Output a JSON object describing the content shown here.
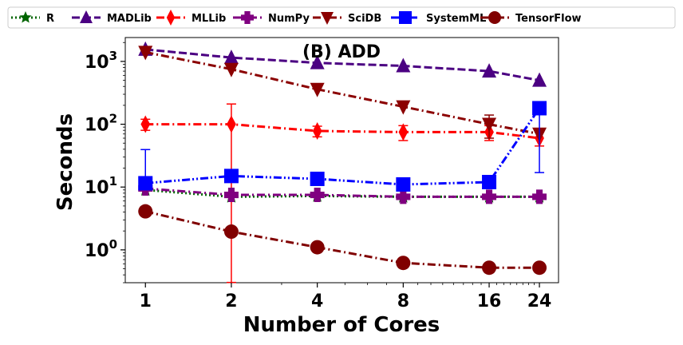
{
  "chart_data": {
    "type": "line",
    "title": "(B) ADD",
    "xlabel": "Number of Cores",
    "ylabel": "Seconds",
    "yscale": "log",
    "xscale": "log2",
    "x": [
      1,
      2,
      4,
      8,
      16,
      24
    ],
    "x_tick_labels": [
      "1",
      "2",
      "4",
      "8",
      "16",
      "24"
    ],
    "y_tick_labels": [
      {
        "base": "10",
        "exp": "0",
        "value": 1
      },
      {
        "base": "10",
        "exp": "1",
        "value": 10
      },
      {
        "base": "10",
        "exp": "2",
        "value": 100
      },
      {
        "base": "10",
        "exp": "3",
        "value": 1000
      }
    ],
    "ylim": [
      0.3,
      2400
    ],
    "legend_position": "top",
    "series": [
      {
        "name": "R",
        "color": "#006400",
        "marker": "star",
        "linestyle": "dotted",
        "values": [
          9.0,
          7.0,
          7.2,
          7.0,
          7.0,
          7.0
        ]
      },
      {
        "name": "MADLib",
        "color": "#4B0082",
        "marker": "triangle-up",
        "linestyle": "dashed",
        "values": [
          1550,
          1150,
          950,
          850,
          700,
          500
        ]
      },
      {
        "name": "MLLib",
        "color": "#FF0000",
        "marker": "diamond",
        "linestyle": "dashdot",
        "values": [
          100,
          100,
          78,
          75,
          75,
          60
        ],
        "errors": [
          20,
          110,
          15,
          20,
          20,
          15
        ]
      },
      {
        "name": "NumPy",
        "color": "#800080",
        "marker": "plus",
        "linestyle": "dashdot",
        "values": [
          9.5,
          7.5,
          7.5,
          7.0,
          7.0,
          7.0
        ]
      },
      {
        "name": "SciDB",
        "color": "#8B0000",
        "marker": "triangle-down",
        "linestyle": "dashdot",
        "values": [
          1400,
          750,
          360,
          190,
          100,
          70
        ],
        "errors": [
          0,
          0,
          0,
          0,
          40,
          0
        ]
      },
      {
        "name": "SystemML",
        "color": "#0000FF",
        "marker": "square",
        "linestyle": "dashdotdot",
        "values": [
          11.5,
          15,
          13.5,
          11,
          12,
          180
        ],
        "errors_low": [
          0,
          0,
          0,
          0,
          0,
          163
        ],
        "errors_high": [
          28,
          0,
          0,
          0,
          0,
          0
        ]
      },
      {
        "name": "TensorFlow",
        "color": "#800000",
        "marker": "circle",
        "linestyle": "dashdot",
        "values": [
          4.1,
          1.95,
          1.1,
          0.62,
          0.52,
          0.52
        ]
      }
    ],
    "grid": false
  }
}
